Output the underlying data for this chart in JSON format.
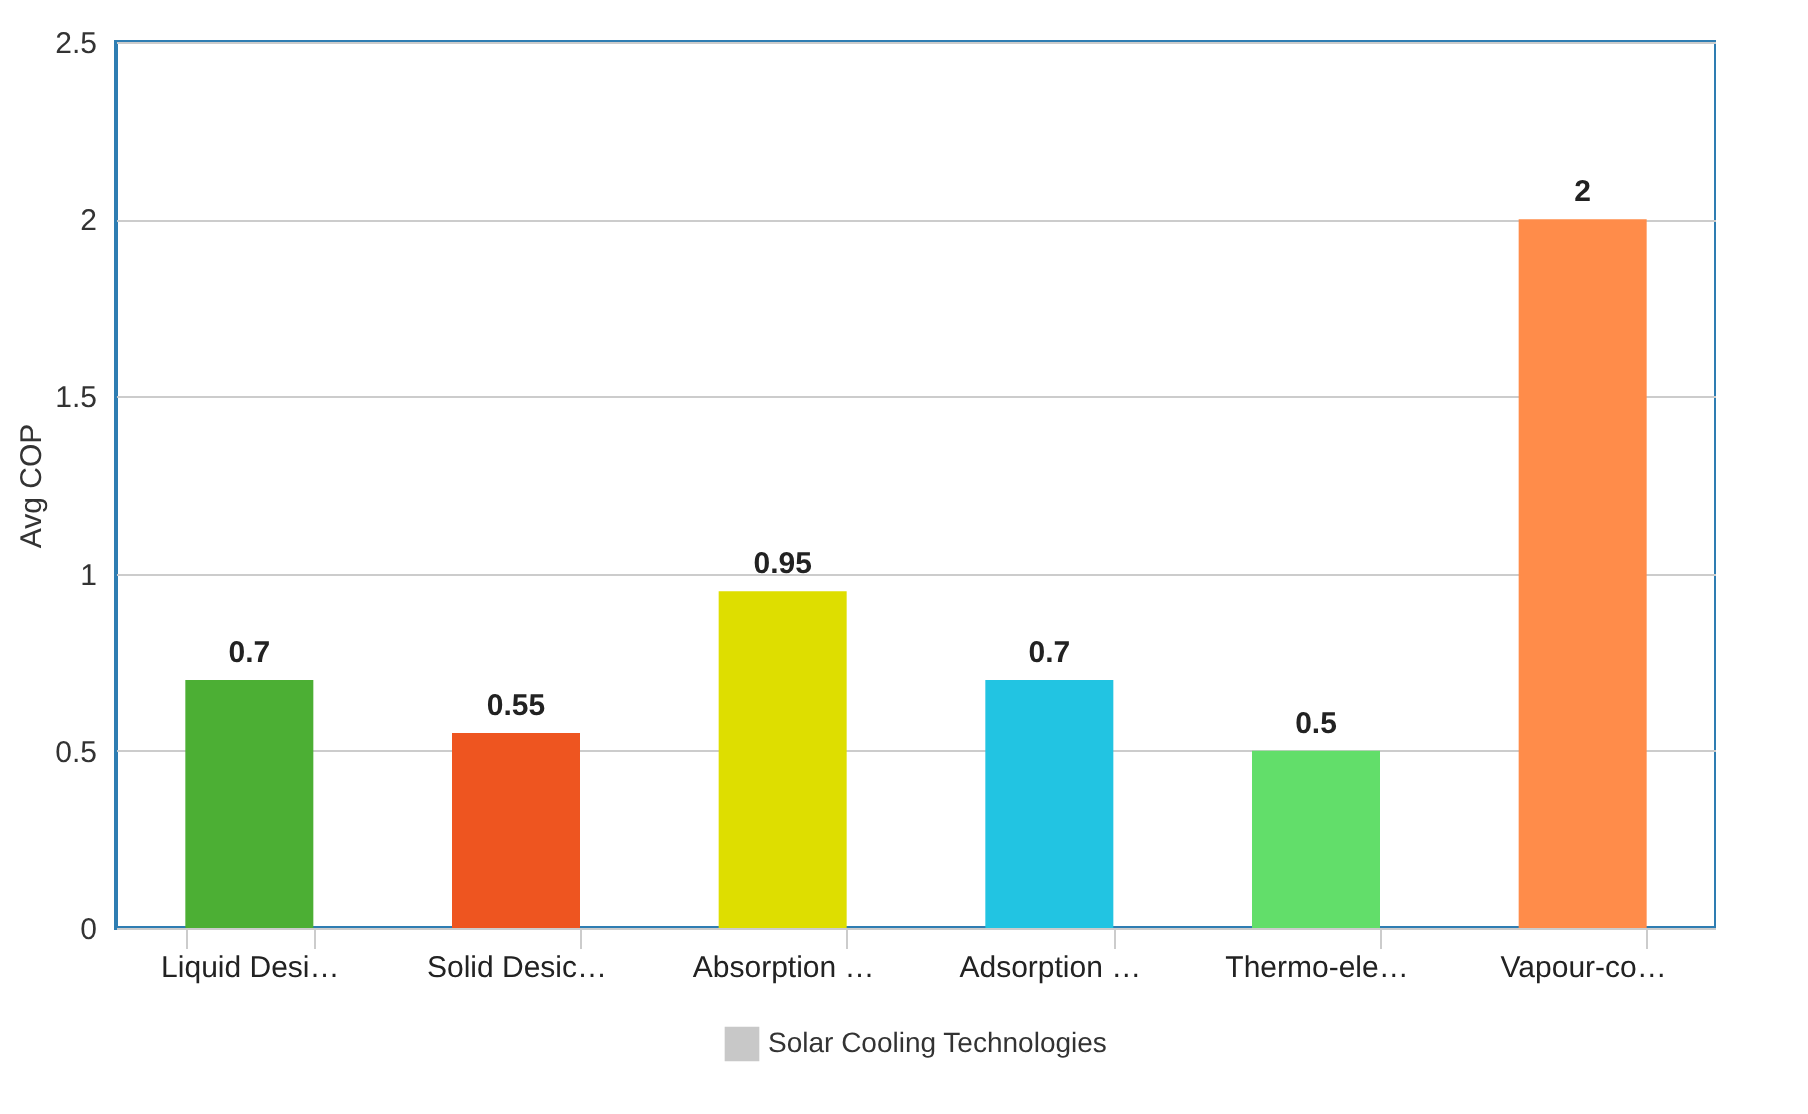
{
  "chart_data": {
    "type": "bar",
    "ylabel": "Avg COP",
    "categories": [
      "Liquid Desi…",
      "Solid Desic…",
      "Absorption …",
      "Adsorption …",
      "Thermo-ele…",
      "Vapour-co…"
    ],
    "series": [
      {
        "name": "Solar Cooling Technologies",
        "color": "#c8c8c8",
        "values": [
          0.7,
          0.55,
          0.95,
          0.7,
          0.5,
          2
        ],
        "colors": [
          "#4caf34",
          "#ee5520",
          "#dede00",
          "#22c4e2",
          "#62de6a",
          "#ff8c4a"
        ]
      }
    ],
    "ylim": [
      0,
      2.5
    ],
    "yticks": [
      0,
      0.5,
      1,
      1.5,
      2,
      2.5
    ],
    "grid": "y",
    "legend": "bottom",
    "data_labels": true
  }
}
